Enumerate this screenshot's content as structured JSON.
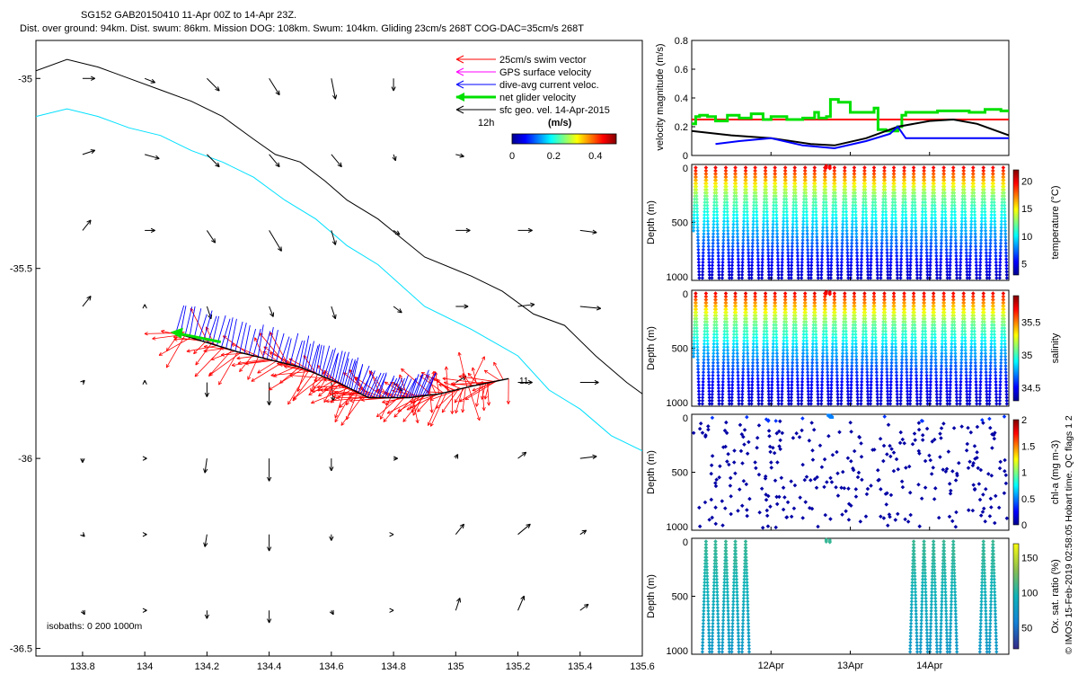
{
  "header": {
    "line1": "SG152 GAB20150410 11-Apr 00Z to 14-Apr 23Z.",
    "line2": "Dist. over ground: 94km. Dist. swum: 86km. Mission DOG: 108km. Swum: 104km. Gliding 23cm/s 268T COG-DAC=35cm/s 268T"
  },
  "credit": "© IMOS 15-Feb-2019 02:58:05 Hobart time. QC flags 1  2",
  "colors": {
    "swim": "#ff0000",
    "gps": "#ff00ff",
    "dac": "#0000ff",
    "net": "#00e000",
    "geo": "#000000",
    "isobath_deep": "#000000",
    "isobath_shelf": "#00e0ff"
  },
  "chart_data": [
    {
      "type": "scatter",
      "panel": "map",
      "xlim": [
        133.65,
        135.6
      ],
      "ylim": [
        -36.52,
        -34.9
      ],
      "x_ticks": [
        133.8,
        134,
        134.2,
        134.4,
        134.6,
        134.8,
        135,
        135.2,
        135.4,
        135.6
      ],
      "x_tick_labels": [
        "133.8",
        "134",
        "134.2",
        "134.4",
        "134.6",
        "134.8",
        "135",
        "135.2",
        "135.4",
        "135.6"
      ],
      "y_ticks": [
        -35,
        -35.5,
        -36,
        -36.5
      ],
      "y_tick_labels": [
        "-35",
        "-35.5",
        "-36",
        "-36.5"
      ],
      "legend": [
        {
          "label": "25cm/s swim vector",
          "color": "#ff0000"
        },
        {
          "label": "GPS surface velocity",
          "color": "#ff00ff"
        },
        {
          "label": "dive-avg current veloc.",
          "color": "#0000ff"
        },
        {
          "label": "net glider velocity",
          "color": "#00e000"
        },
        {
          "label": "sfc geo. vel. 14-Apr-2015",
          "color": "#000000"
        }
      ],
      "scale_label": "12h",
      "colorbar": {
        "title": "(m/s)",
        "ticks": [
          "0",
          "0.2",
          "0.4"
        ],
        "range": [
          0,
          0.5
        ]
      },
      "isobath_label": "isobaths: 0   200  1000m",
      "track_end_label": "11",
      "track": [
        [
          134.1,
          -35.67
        ],
        [
          134.3,
          -35.72
        ],
        [
          134.5,
          -35.76
        ],
        [
          134.62,
          -35.8
        ],
        [
          134.72,
          -35.84
        ],
        [
          134.85,
          -35.84
        ],
        [
          134.95,
          -35.83
        ],
        [
          135.05,
          -35.81
        ],
        [
          135.17,
          -35.79
        ]
      ],
      "isobath_1000": [
        [
          133.65,
          -34.98
        ],
        [
          133.75,
          -34.95
        ],
        [
          133.85,
          -34.97
        ],
        [
          133.95,
          -35.0
        ],
        [
          134.05,
          -35.03
        ],
        [
          134.15,
          -35.06
        ],
        [
          134.25,
          -35.1
        ],
        [
          134.35,
          -35.16
        ],
        [
          134.42,
          -35.2
        ],
        [
          134.5,
          -35.22
        ],
        [
          134.58,
          -35.27
        ],
        [
          134.65,
          -35.32
        ],
        [
          134.75,
          -35.37
        ],
        [
          134.9,
          -35.47
        ],
        [
          135.05,
          -35.52
        ],
        [
          135.15,
          -35.56
        ],
        [
          135.25,
          -35.62
        ],
        [
          135.35,
          -35.65
        ],
        [
          135.45,
          -35.73
        ],
        [
          135.55,
          -35.8
        ],
        [
          135.6,
          -35.83
        ]
      ],
      "isobath_200": [
        [
          133.65,
          -35.1
        ],
        [
          133.75,
          -35.08
        ],
        [
          133.85,
          -35.1
        ],
        [
          133.95,
          -35.13
        ],
        [
          134.05,
          -35.15
        ],
        [
          134.15,
          -35.19
        ],
        [
          134.25,
          -35.22
        ],
        [
          134.35,
          -35.26
        ],
        [
          134.45,
          -35.32
        ],
        [
          134.55,
          -35.37
        ],
        [
          134.65,
          -35.44
        ],
        [
          134.75,
          -35.49
        ],
        [
          134.9,
          -35.6
        ],
        [
          135.05,
          -35.66
        ],
        [
          135.2,
          -35.73
        ],
        [
          135.3,
          -35.82
        ],
        [
          135.4,
          -35.87
        ],
        [
          135.5,
          -35.94
        ],
        [
          135.6,
          -35.98
        ]
      ],
      "geo_vectors": [
        {
          "x": 133.8,
          "y": -35.0,
          "u": 0.06,
          "v": 0.0
        },
        {
          "x": 134.0,
          "y": -35.0,
          "u": 0.05,
          "v": -0.02
        },
        {
          "x": 134.2,
          "y": -35.0,
          "u": 0.06,
          "v": -0.06
        },
        {
          "x": 134.4,
          "y": -35.0,
          "u": 0.05,
          "v": -0.08
        },
        {
          "x": 134.6,
          "y": -35.0,
          "u": 0.02,
          "v": -0.1
        },
        {
          "x": 134.8,
          "y": -35.0,
          "u": 0.0,
          "v": -0.06
        },
        {
          "x": 133.8,
          "y": -35.2,
          "u": 0.06,
          "v": 0.02
        },
        {
          "x": 134.0,
          "y": -35.2,
          "u": 0.07,
          "v": -0.02
        },
        {
          "x": 134.2,
          "y": -35.2,
          "u": 0.06,
          "v": -0.06
        },
        {
          "x": 134.4,
          "y": -35.2,
          "u": 0.05,
          "v": -0.06
        },
        {
          "x": 134.6,
          "y": -35.2,
          "u": 0.05,
          "v": -0.06
        },
        {
          "x": 134.8,
          "y": -35.2,
          "u": 0.01,
          "v": -0.03
        },
        {
          "x": 135.0,
          "y": -35.2,
          "u": 0.04,
          "v": -0.01
        },
        {
          "x": 133.8,
          "y": -35.4,
          "u": 0.04,
          "v": 0.05
        },
        {
          "x": 134.0,
          "y": -35.4,
          "u": 0.05,
          "v": 0.0
        },
        {
          "x": 134.2,
          "y": -35.4,
          "u": 0.04,
          "v": -0.06
        },
        {
          "x": 134.4,
          "y": -35.4,
          "u": 0.06,
          "v": -0.1
        },
        {
          "x": 134.6,
          "y": -35.4,
          "u": 0.02,
          "v": -0.07
        },
        {
          "x": 134.8,
          "y": -35.4,
          "u": 0.03,
          "v": -0.02
        },
        {
          "x": 135.0,
          "y": -35.4,
          "u": 0.07,
          "v": 0.0
        },
        {
          "x": 135.2,
          "y": -35.4,
          "u": 0.07,
          "v": 0.0
        },
        {
          "x": 135.4,
          "y": -35.4,
          "u": 0.08,
          "v": -0.01
        },
        {
          "x": 133.8,
          "y": -35.6,
          "u": 0.04,
          "v": 0.05
        },
        {
          "x": 134.0,
          "y": -35.6,
          "u": 0.0,
          "v": 0.01
        },
        {
          "x": 134.2,
          "y": -35.6,
          "u": 0.02,
          "v": -0.06
        },
        {
          "x": 134.4,
          "y": -35.6,
          "u": 0.02,
          "v": -0.05
        },
        {
          "x": 134.6,
          "y": -35.6,
          "u": 0.02,
          "v": -0.06
        },
        {
          "x": 134.8,
          "y": -35.6,
          "u": 0.04,
          "v": -0.03
        },
        {
          "x": 135.0,
          "y": -35.6,
          "u": 0.06,
          "v": 0.0
        },
        {
          "x": 135.2,
          "y": -35.6,
          "u": 0.08,
          "v": 0.01
        },
        {
          "x": 135.4,
          "y": -35.6,
          "u": 0.1,
          "v": -0.01
        },
        {
          "x": 133.8,
          "y": -35.8,
          "u": 0.01,
          "v": 0.01
        },
        {
          "x": 134.0,
          "y": -35.8,
          "u": 0.0,
          "v": 0.01
        },
        {
          "x": 134.2,
          "y": -35.8,
          "u": 0.0,
          "v": -0.07
        },
        {
          "x": 134.4,
          "y": -35.8,
          "u": 0.0,
          "v": -0.11
        },
        {
          "x": 134.6,
          "y": -35.8,
          "u": 0.01,
          "v": -0.09
        },
        {
          "x": 134.8,
          "y": -35.8,
          "u": 0.04,
          "v": -0.04
        },
        {
          "x": 135.0,
          "y": -35.8,
          "u": 0.05,
          "v": 0.03
        },
        {
          "x": 135.2,
          "y": -35.8,
          "u": 0.07,
          "v": 0.0
        },
        {
          "x": 135.4,
          "y": -35.8,
          "u": 0.09,
          "v": 0.0
        },
        {
          "x": 133.8,
          "y": -36.0,
          "u": 0.0,
          "v": -0.02
        },
        {
          "x": 134.0,
          "y": -36.0,
          "u": 0.01,
          "v": 0.0
        },
        {
          "x": 134.2,
          "y": -36.0,
          "u": -0.01,
          "v": -0.07
        },
        {
          "x": 134.4,
          "y": -36.0,
          "u": 0.0,
          "v": -0.11
        },
        {
          "x": 134.6,
          "y": -36.0,
          "u": 0.0,
          "v": -0.06
        },
        {
          "x": 134.8,
          "y": -36.0,
          "u": 0.02,
          "v": 0.0
        },
        {
          "x": 135.0,
          "y": -36.0,
          "u": 0.01,
          "v": 0.02
        },
        {
          "x": 135.2,
          "y": -36.0,
          "u": 0.04,
          "v": 0.03
        },
        {
          "x": 135.4,
          "y": -36.0,
          "u": 0.08,
          "v": 0.01
        },
        {
          "x": 133.8,
          "y": -36.2,
          "u": 0.01,
          "v": -0.01
        },
        {
          "x": 134.0,
          "y": -36.2,
          "u": 0.01,
          "v": 0.0
        },
        {
          "x": 134.2,
          "y": -36.2,
          "u": -0.01,
          "v": -0.06
        },
        {
          "x": 134.4,
          "y": -36.2,
          "u": 0.0,
          "v": -0.08
        },
        {
          "x": 134.6,
          "y": -36.2,
          "u": 0.0,
          "v": -0.03
        },
        {
          "x": 134.8,
          "y": -36.2,
          "u": 0.0,
          "v": 0.0
        },
        {
          "x": 135.0,
          "y": -36.2,
          "u": 0.04,
          "v": 0.05
        },
        {
          "x": 135.2,
          "y": -36.2,
          "u": 0.06,
          "v": 0.05
        },
        {
          "x": 135.4,
          "y": -36.2,
          "u": 0.03,
          "v": 0.02
        },
        {
          "x": 133.8,
          "y": -36.4,
          "u": 0.01,
          "v": -0.02
        },
        {
          "x": 134.0,
          "y": -36.4,
          "u": 0.01,
          "v": 0.0
        },
        {
          "x": 134.2,
          "y": -36.4,
          "u": 0.0,
          "v": -0.04
        },
        {
          "x": 134.4,
          "y": -36.4,
          "u": 0.0,
          "v": -0.06
        },
        {
          "x": 134.6,
          "y": -36.4,
          "u": 0.01,
          "v": -0.02
        },
        {
          "x": 134.8,
          "y": -36.4,
          "u": 0.0,
          "v": 0.0
        },
        {
          "x": 135.0,
          "y": -36.4,
          "u": 0.02,
          "v": 0.06
        },
        {
          "x": 135.2,
          "y": -36.4,
          "u": 0.03,
          "v": 0.07
        },
        {
          "x": 135.4,
          "y": -36.4,
          "u": 0.04,
          "v": 0.03
        }
      ]
    },
    {
      "type": "line",
      "panel": "velocity",
      "ylabel": "velocity magnitude (m/s)",
      "ylim": [
        0,
        0.8
      ],
      "y_ticks": [
        "0",
        "0.2",
        "0.4",
        "0.6",
        "0.8"
      ],
      "x_range_days": [
        11.0,
        15.0
      ],
      "series": [
        {
          "name": "swim speed",
          "color": "#ff0000",
          "x": [
            11.0,
            15.0
          ],
          "values": [
            0.25,
            0.25
          ]
        },
        {
          "name": "net glider velocity",
          "color": "#00e000",
          "x": [
            11.0,
            11.05,
            11.1,
            11.2,
            11.3,
            11.45,
            11.6,
            11.75,
            11.9,
            12.0,
            12.2,
            12.4,
            12.55,
            12.6,
            12.7,
            12.75,
            12.85,
            13.0,
            13.1,
            13.3,
            13.35,
            13.45,
            13.6,
            13.65,
            13.7,
            13.9,
            14.1,
            14.3,
            14.5,
            14.7,
            14.9,
            15.0
          ],
          "values": [
            0.22,
            0.27,
            0.28,
            0.27,
            0.24,
            0.28,
            0.26,
            0.29,
            0.25,
            0.27,
            0.25,
            0.26,
            0.3,
            0.26,
            0.27,
            0.39,
            0.37,
            0.3,
            0.3,
            0.33,
            0.18,
            0.17,
            0.2,
            0.28,
            0.3,
            0.3,
            0.31,
            0.31,
            0.3,
            0.32,
            0.31,
            0.3
          ]
        },
        {
          "name": "sfc geo. vel.",
          "color": "#000000",
          "x": [
            11.0,
            11.5,
            12.0,
            12.5,
            12.8,
            13.2,
            13.6,
            14.0,
            14.3,
            14.6,
            15.0
          ],
          "values": [
            0.17,
            0.14,
            0.12,
            0.08,
            0.07,
            0.12,
            0.2,
            0.24,
            0.25,
            0.22,
            0.14
          ]
        },
        {
          "name": "dive-avg current",
          "color": "#0000ff",
          "x": [
            11.3,
            11.6,
            12.0,
            12.4,
            12.8,
            13.2,
            13.5,
            13.6,
            13.7,
            14.0,
            14.5,
            15.0
          ],
          "values": [
            0.08,
            0.1,
            0.12,
            0.07,
            0.05,
            0.1,
            0.15,
            0.2,
            0.12,
            0.12,
            0.12,
            0.12
          ]
        }
      ]
    },
    {
      "type": "scatter",
      "panel": "temperature",
      "ylabel": "Depth (m)",
      "ylim": [
        1000,
        0
      ],
      "y_ticks": [
        "0",
        "500",
        "1000"
      ],
      "colorbar": {
        "label": "temperature (°C)",
        "ticks": [
          "5",
          "10",
          "15",
          "20"
        ],
        "range": [
          3,
          22
        ]
      },
      "dive_times_days": [
        11.05,
        11.18,
        11.3,
        11.43,
        11.55,
        11.68,
        11.8,
        11.93,
        12.05,
        12.18,
        12.3,
        12.43,
        12.55,
        12.68,
        12.8,
        12.93,
        13.05,
        13.18,
        13.3,
        13.43,
        13.55,
        13.68,
        13.8,
        13.93,
        14.05,
        14.18,
        14.3,
        14.43,
        14.55,
        14.68,
        14.8,
        14.93
      ],
      "profile": {
        "depth": [
          0,
          100,
          200,
          300,
          400,
          500,
          600,
          700,
          800,
          900,
          980
        ],
        "values": [
          20.5,
          17.5,
          14.0,
          12.0,
          10.8,
          9.5,
          8.2,
          7.0,
          5.8,
          4.8,
          4.2
        ]
      }
    },
    {
      "type": "scatter",
      "panel": "salinity",
      "ylabel": "Depth (m)",
      "ylim": [
        1000,
        0
      ],
      "y_ticks": [
        "0",
        "500",
        "1000"
      ],
      "colorbar": {
        "label": "salinity",
        "ticks": [
          "34.5",
          "35",
          "35.5"
        ],
        "range": [
          34.3,
          35.9
        ]
      },
      "profile": {
        "depth": [
          0,
          100,
          200,
          300,
          400,
          500,
          600,
          700,
          800,
          900,
          980
        ],
        "values": [
          35.8,
          35.5,
          35.25,
          35.05,
          34.95,
          34.8,
          34.7,
          34.6,
          34.5,
          34.45,
          34.4
        ]
      }
    },
    {
      "type": "scatter",
      "panel": "chl",
      "ylabel": "Depth (m)",
      "ylim": [
        1000,
        0
      ],
      "y_ticks": [
        "0",
        "500",
        "1000"
      ],
      "colorbar": {
        "label": "chl-a (mg m-3)",
        "ticks": [
          "0",
          "0.5",
          "1",
          "1.5",
          "2"
        ],
        "range": [
          0,
          2
        ]
      },
      "surface_value": 0.35,
      "deep_value": 0.05
    },
    {
      "type": "scatter",
      "panel": "oxygen",
      "ylabel": "Depth (m)",
      "ylim": [
        1000,
        0
      ],
      "y_ticks": [
        "0",
        "500",
        "1000"
      ],
      "colorbar": {
        "label": "Ox. sat. ratio (%)",
        "ticks": [
          "50",
          "100",
          "150"
        ],
        "range": [
          20,
          170
        ]
      },
      "dive_times_days": [
        11.18,
        11.3,
        11.43,
        11.55,
        11.68,
        13.8,
        13.93,
        14.05,
        14.18,
        14.3,
        14.68,
        14.8
      ],
      "profile": {
        "depth": [
          0,
          200,
          400,
          600,
          800,
          1000
        ],
        "values": [
          108,
          104,
          96,
          88,
          80,
          74
        ]
      }
    },
    {
      "type": "axis",
      "panel": "time",
      "x_ticks_days": [
        12.0,
        13.0,
        14.0
      ],
      "x_tick_labels": [
        "12Apr",
        "13Apr",
        "14Apr"
      ]
    }
  ]
}
